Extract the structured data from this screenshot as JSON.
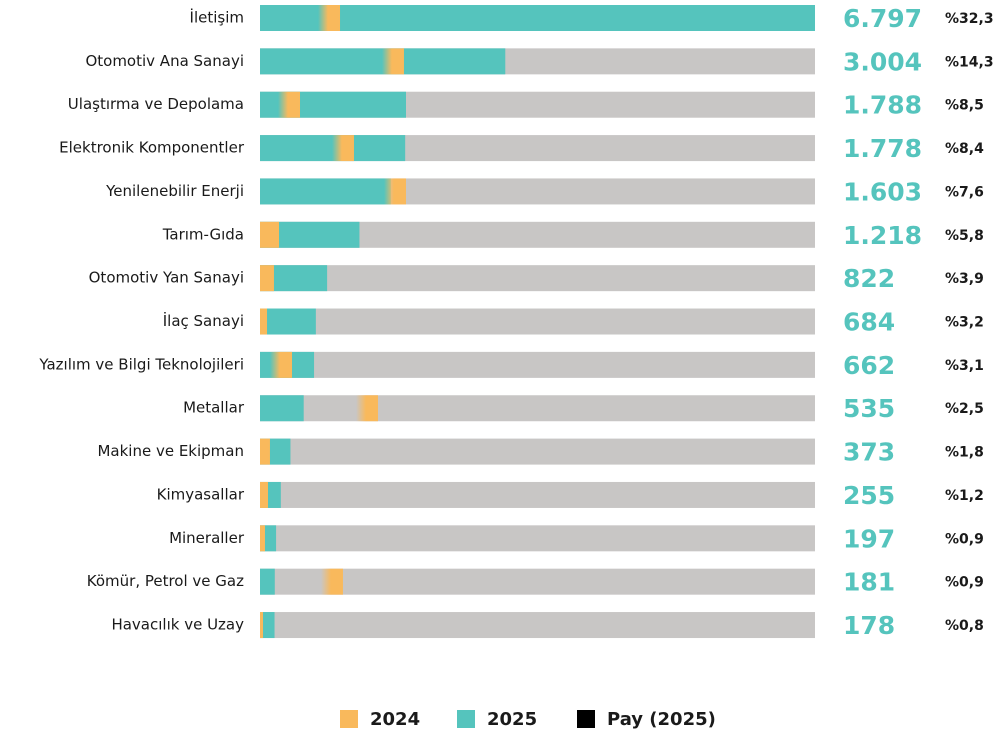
{
  "chart_data": {
    "type": "bar",
    "orientation": "horizontal",
    "categories": [
      "İletişim",
      "Otomotiv Ana Sanayi",
      "Ulaştırma ve Depolama",
      "Elektronik Komponentler",
      "Yenilenebilir Enerji",
      "Tarım-Gıda",
      "Otomotiv Yan Sanayi",
      "İlaç Sanayi",
      "Yazılım ve Bilgi Teknolojileri",
      "Metallar",
      "Makine ve Ekipman",
      "Kimyasallar",
      "Mineraller",
      "Kömür, Petrol ve Gaz",
      "Havacılık ve Uzay"
    ],
    "xlim": [
      0,
      6797
    ],
    "series": [
      {
        "name": "2024",
        "color": "#f9b95c",
        "values": [
          980,
          1763,
          490,
          1151,
          1788,
          233,
          171,
          86,
          392,
          1445,
          122,
          98,
          61,
          1016,
          37
        ]
      },
      {
        "name": "2025",
        "color": "#55c4bd",
        "values": [
          6797,
          3004,
          1788,
          1778,
          1603,
          1218,
          822,
          684,
          662,
          535,
          373,
          255,
          197,
          181,
          178
        ],
        "value_labels": [
          "6.797",
          "3.004",
          "1.788",
          "1.778",
          "1.603",
          "1.218",
          "822",
          "684",
          "662",
          "535",
          "373",
          "255",
          "197",
          "181",
          "178"
        ]
      },
      {
        "name": "Pay (2025)",
        "color": "#000000",
        "values": [
          32.3,
          14.3,
          8.5,
          8.4,
          7.6,
          5.8,
          3.9,
          3.2,
          3.1,
          2.5,
          1.8,
          1.2,
          0.9,
          0.9,
          0.8
        ],
        "value_labels": [
          "%32,3",
          "%14,3",
          "%8,5",
          "%8,4",
          "%7,6",
          "%5,8",
          "%3,9",
          "%3,2",
          "%3,1",
          "%2,5",
          "%1,8",
          "%1,2",
          "%0,9",
          "%0,9",
          "%0,8"
        ]
      }
    ]
  }
}
